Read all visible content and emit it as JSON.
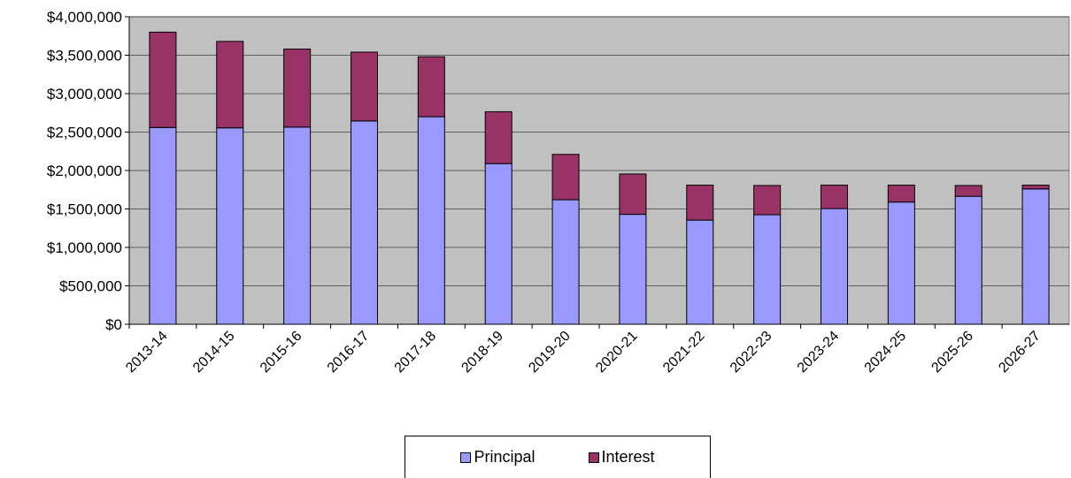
{
  "chart_data": {
    "type": "bar",
    "stacked": true,
    "title": "",
    "xlabel": "",
    "ylabel": "",
    "ylim": [
      0,
      4000000
    ],
    "yticks": [
      0,
      500000,
      1000000,
      1500000,
      2000000,
      2500000,
      3000000,
      3500000,
      4000000
    ],
    "ytick_labels": [
      "$0",
      "$500,000",
      "$1,000,000",
      "$1,500,000",
      "$2,000,000",
      "$2,500,000",
      "$3,000,000",
      "$3,500,000",
      "$4,000,000"
    ],
    "grid": true,
    "legend_position": "bottom",
    "plot_background": "#c0c0c0",
    "categories": [
      "2013-14",
      "2014-15",
      "2015-16",
      "2016-17",
      "2017-18",
      "2018-19",
      "2019-20",
      "2020-21",
      "2021-22",
      "2022-23",
      "2023-24",
      "2024-25",
      "2025-26",
      "2026-27"
    ],
    "series": [
      {
        "name": "Principal",
        "color": "#9999ff",
        "values": [
          2560000,
          2555000,
          2565000,
          2645000,
          2700000,
          2090000,
          1620000,
          1430000,
          1355000,
          1425000,
          1505000,
          1590000,
          1665000,
          1760000
        ]
      },
      {
        "name": "Interest",
        "color": "#993366",
        "values": [
          1240000,
          1125000,
          1015000,
          895000,
          780000,
          675000,
          590000,
          525000,
          455000,
          380000,
          305000,
          220000,
          140000,
          50000
        ]
      }
    ]
  }
}
